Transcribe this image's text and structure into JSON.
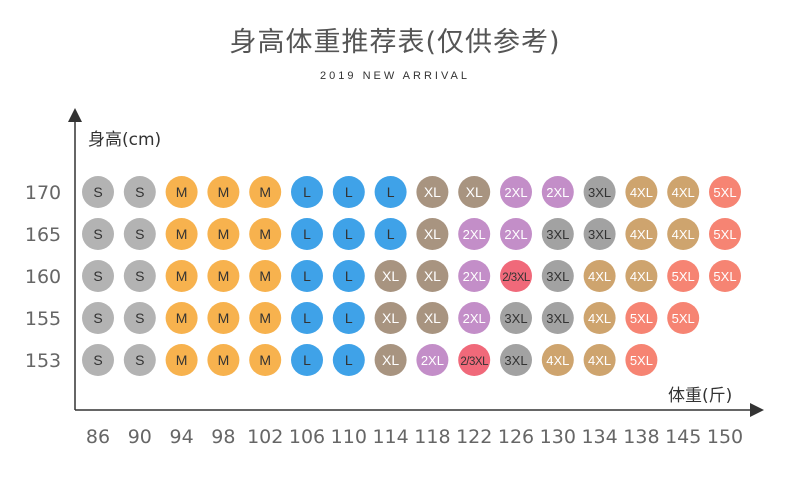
{
  "title": "身高体重推荐表(仅供参考)",
  "subtitle": "2019 NEW ARRIVAL",
  "chart_data": {
    "type": "table",
    "ylabel": "身高(cm)",
    "xlabel": "体重(斤)",
    "x": [
      "86",
      "90",
      "94",
      "98",
      "102",
      "106",
      "110",
      "114",
      "118",
      "122",
      "126",
      "130",
      "134",
      "138",
      "145",
      "150"
    ],
    "rows": [
      {
        "height": "170",
        "sizes": [
          "S",
          "S",
          "M",
          "M",
          "M",
          "L",
          "L",
          "L",
          "XL",
          "XL",
          "2XL",
          "2XL",
          "3XL",
          "4XL",
          "4XL",
          "5XL"
        ]
      },
      {
        "height": "165",
        "sizes": [
          "S",
          "S",
          "M",
          "M",
          "M",
          "L",
          "L",
          "L",
          "XL",
          "2XL",
          "2XL",
          "3XL",
          "3XL",
          "4XL",
          "4XL",
          "5XL"
        ]
      },
      {
        "height": "160",
        "sizes": [
          "S",
          "S",
          "M",
          "M",
          "M",
          "L",
          "L",
          "XL",
          "XL",
          "2XL",
          "2/3XL",
          "3XL",
          "4XL",
          "4XL",
          "5XL",
          "5XL"
        ]
      },
      {
        "height": "155",
        "sizes": [
          "S",
          "S",
          "M",
          "M",
          "M",
          "L",
          "L",
          "XL",
          "XL",
          "2XL",
          "3XL",
          "3XL",
          "4XL",
          "5XL",
          "5XL"
        ]
      },
      {
        "height": "153",
        "sizes": [
          "S",
          "S",
          "M",
          "M",
          "M",
          "L",
          "L",
          "XL",
          "2XL",
          "2/3XL",
          "3XL",
          "4XL",
          "4XL",
          "5XL"
        ]
      }
    ],
    "colors": {
      "S": "#b3b3b3",
      "M": "#f7b24e",
      "L": "#3fa2e8",
      "XL": "#a89480",
      "2XL": "#c38ec8",
      "2/3XL": "#f0697a",
      "3XL": "#a2a2a2",
      "4XL": "#cea46e",
      "5XL": "#f68473"
    },
    "text_colors": {
      "S": "#333333",
      "M": "#333333",
      "L": "#333333",
      "XL": "#ffffff",
      "2XL": "#ffffff",
      "2/3XL": "#333333",
      "3XL": "#333333",
      "4XL": "#ffffff",
      "5XL": "#ffffff"
    },
    "axis_color": "#333333"
  }
}
